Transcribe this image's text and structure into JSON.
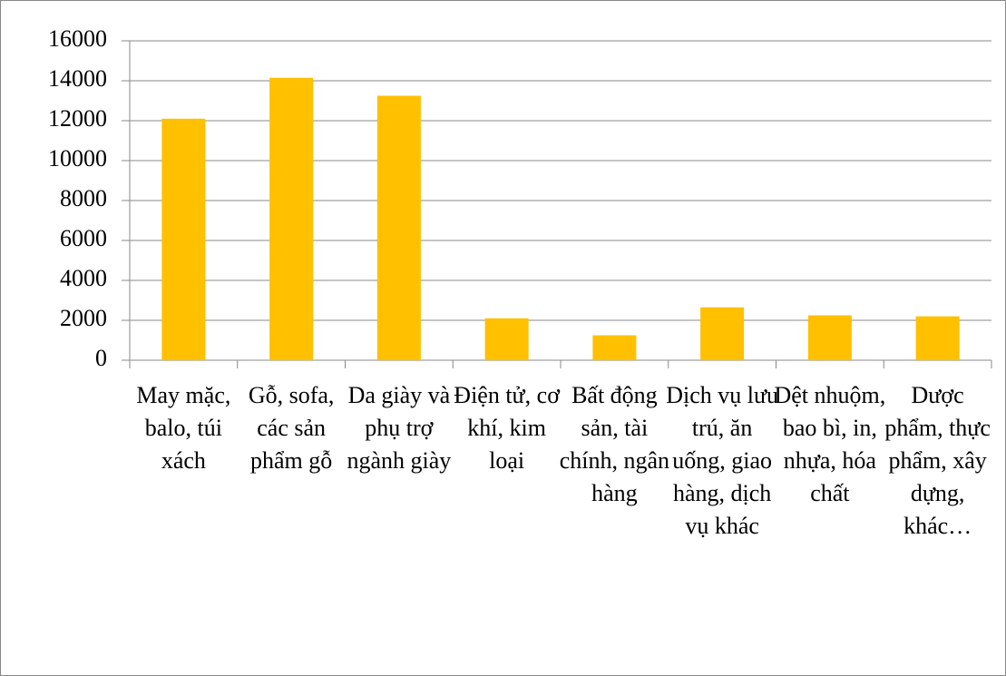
{
  "chart_data": {
    "type": "bar",
    "categories": [
      "May mặc, balo, túi xách",
      "Gỗ, sofa, các sản phẩm gỗ",
      "Da giày và phụ trợ ngành giày",
      "Điện tử, cơ khí, kim loại",
      "Bất động sản, tài chính, ngân hàng",
      "Dịch vụ lưu trú, ăn uống, giao hàng, dịch vụ khác",
      "Dệt nhuộm, bao bì, in, nhựa, hóa chất",
      "Dược phẩm, thực phẩm, xây dựng, khác…"
    ],
    "values": [
      12100,
      14150,
      13250,
      2100,
      1250,
      2650,
      2250,
      2200
    ],
    "color": "#ffc000",
    "ylim": [
      0,
      16000
    ],
    "yticks": [
      0,
      2000,
      4000,
      6000,
      8000,
      10000,
      12000,
      14000,
      16000
    ],
    "grid": true
  }
}
